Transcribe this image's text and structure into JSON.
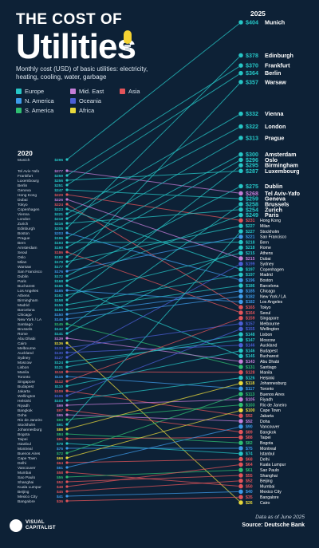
{
  "header": {
    "title_line1": "THE COST OF",
    "title_line2": "Utilities",
    "subtitle": "Monthly cost (USD) of basic utilities: electricity, heating, cooling, water, garbage"
  },
  "legend": [
    {
      "label": "Europe",
      "color": "#26c6c6"
    },
    {
      "label": "Mid. East",
      "color": "#c57ed9"
    },
    {
      "label": "Asia",
      "color": "#e3545a"
    },
    {
      "label": "N. America",
      "color": "#3d9be9"
    },
    {
      "label": "Oceania",
      "color": "#4b5fd6"
    },
    {
      "label": "S. America",
      "color": "#2fbf71"
    },
    {
      "label": "Africa",
      "color": "#e8d93c"
    }
  ],
  "columns": {
    "left": "2020",
    "right": "2025"
  },
  "footer": {
    "note": "Data as of June 2025",
    "source_label": "Source:",
    "source": "Deutsche Bank",
    "logo": "VISUAL CAPITALIST"
  },
  "chart_data": {
    "type": "slope",
    "title": "The Cost of Utilities",
    "unit": "USD per month",
    "x": [
      "2020",
      "2025"
    ],
    "series": [
      {
        "city": "Munich",
        "region": "Europe",
        "v2020": 296,
        "v2025": 404
      },
      {
        "city": "Tel Aviv-Yafo",
        "region": "Mid. East",
        "v2020": 277,
        "v2025": 268
      },
      {
        "city": "Frankfurt",
        "region": "Europe",
        "v2020": 259,
        "v2025": 370
      },
      {
        "city": "Luxembourg",
        "region": "Europe",
        "v2020": 256,
        "v2025": 287
      },
      {
        "city": "Berlin",
        "region": "Europe",
        "v2020": 251,
        "v2025": 364
      },
      {
        "city": "Geneva",
        "region": "Europe",
        "v2020": 247,
        "v2025": 259
      },
      {
        "city": "Hong Kong",
        "region": "Asia",
        "v2020": 229,
        "v2025": 231
      },
      {
        "city": "Tokyo",
        "region": "Asia",
        "v2020": 224,
        "v2025": 165
      },
      {
        "city": "Copenhagen",
        "region": "Europe",
        "v2020": 223,
        "v2025": 197
      },
      {
        "city": "Vienna",
        "region": "Europe",
        "v2020": 221,
        "v2025": 332
      },
      {
        "city": "London",
        "region": "Europe",
        "v2020": 218,
        "v2025": 322
      },
      {
        "city": "Zurich",
        "region": "Europe",
        "v2020": 216,
        "v2025": 254
      },
      {
        "city": "Edinburgh",
        "region": "Europe",
        "v2020": 205,
        "v2025": 378
      },
      {
        "city": "Boston",
        "region": "N. America",
        "v2020": 203,
        "v2025": 196
      },
      {
        "city": "Prague",
        "region": "Europe",
        "v2020": 196,
        "v2025": 313
      },
      {
        "city": "Bern",
        "region": "Europe",
        "v2020": 193,
        "v2025": 218
      },
      {
        "city": "Amsterdam",
        "region": "Europe",
        "v2020": 190,
        "v2025": 300
      },
      {
        "city": "Seoul",
        "region": "Asia",
        "v2020": 186,
        "v2025": 164
      },
      {
        "city": "Oslo",
        "region": "Europe",
        "v2020": 182,
        "v2025": 296
      },
      {
        "city": "Milan",
        "region": "Europe",
        "v2020": 179,
        "v2025": 227
      },
      {
        "city": "Warsaw",
        "region": "Europe",
        "v2020": 177,
        "v2025": 357
      },
      {
        "city": "San Francisco",
        "region": "N. America",
        "v2020": 176,
        "v2025": 221
      },
      {
        "city": "Dublin",
        "region": "Europe",
        "v2020": 172,
        "v2025": 275
      },
      {
        "city": "Paris",
        "region": "Europe",
        "v2020": 168,
        "v2025": 249
      },
      {
        "city": "Bucharest",
        "region": "Europe",
        "v2020": 166,
        "v2025": 145
      },
      {
        "city": "Athens",
        "region": "Europe",
        "v2020": 162,
        "v2025": 215
      },
      {
        "city": "Birmingham",
        "region": "Europe",
        "v2020": 158,
        "v2025": 295
      },
      {
        "city": "Madrid",
        "region": "Europe",
        "v2020": 156,
        "v2025": 197
      },
      {
        "city": "Barcelona",
        "region": "Europe",
        "v2020": 153,
        "v2025": 186
      },
      {
        "city": "Chicago",
        "region": "N. America",
        "v2020": 150,
        "v2025": 185
      },
      {
        "city": "New York / LA",
        "region": "N. America",
        "v2020": 148,
        "v2025": 182
      },
      {
        "city": "Santiago",
        "region": "S. America",
        "v2020": 145,
        "v2025": 131
      },
      {
        "city": "Brussels",
        "region": "Europe",
        "v2020": 142,
        "v2025": 258
      },
      {
        "city": "Abu Dhabi",
        "region": "Mid. East",
        "v2020": 139,
        "v2025": 143
      },
      {
        "city": "Cairo",
        "region": "Africa",
        "v2020": 136,
        "v2025": 26
      },
      {
        "city": "Melbourne",
        "region": "Oceania",
        "v2020": 133,
        "v2025": 157
      },
      {
        "city": "Auckland",
        "region": "Oceania",
        "v2020": 130,
        "v2025": 146
      },
      {
        "city": "Sydney",
        "region": "Oceania",
        "v2020": 127,
        "v2025": 199
      },
      {
        "city": "Moscow",
        "region": "Europe",
        "v2020": 124,
        "v2025": 147
      },
      {
        "city": "Lisbon",
        "region": "Europe",
        "v2020": 121,
        "v2025": 148
      },
      {
        "city": "Manila",
        "region": "Asia",
        "v2020": 118,
        "v2025": 128
      },
      {
        "city": "Toronto",
        "region": "N. America",
        "v2020": 115,
        "v2025": 117
      },
      {
        "city": "Singapore",
        "region": "Asia",
        "v2020": 112,
        "v2025": 159
      },
      {
        "city": "Jakarta",
        "region": "Asia",
        "v2020": 109,
        "v2025": 92
      },
      {
        "city": "Wellington",
        "region": "Oceania",
        "v2020": 106,
        "v2025": 155
      },
      {
        "city": "Helsinki",
        "region": "Europe",
        "v2020": 103,
        "v2025": 126
      },
      {
        "city": "Riyadh",
        "region": "Mid. East",
        "v2020": 99,
        "v2025": 105
      },
      {
        "city": "Bangkok",
        "region": "Asia",
        "v2020": 97,
        "v2025": 89
      },
      {
        "city": "Doha",
        "region": "Mid. East",
        "v2020": 95,
        "v2025": 92
      },
      {
        "city": "Rio de Janeiro",
        "region": "S. America",
        "v2020": 93,
        "v2025": 103
      },
      {
        "city": "Stockholm",
        "region": "Europe",
        "v2020": 91,
        "v2025": 227
      },
      {
        "city": "Johannesburg",
        "region": "Africa",
        "v2020": 88,
        "v2025": 118
      },
      {
        "city": "Bogota",
        "region": "S. America",
        "v2020": 84,
        "v2025": 82
      },
      {
        "city": "Taipei",
        "region": "Asia",
        "v2020": 81,
        "v2025": 88
      },
      {
        "city": "Istanbul",
        "region": "Europe",
        "v2020": 78,
        "v2025": 74
      },
      {
        "city": "Montreal",
        "region": "N. America",
        "v2020": 75,
        "v2025": 75
      },
      {
        "city": "Buenos Aires",
        "region": "S. America",
        "v2020": 72,
        "v2025": 113
      },
      {
        "city": "Cape Town",
        "region": "Africa",
        "v2020": 69,
        "v2025": 100
      },
      {
        "city": "Delhi",
        "region": "Asia",
        "v2020": 64,
        "v2025": 68
      },
      {
        "city": "Vancouver",
        "region": "N. America",
        "v2020": 61,
        "v2025": 90
      },
      {
        "city": "Mumbai",
        "region": "Asia",
        "v2020": 58,
        "v2025": 50
      },
      {
        "city": "Sao Paulo",
        "region": "S. America",
        "v2020": 55,
        "v2025": 61
      },
      {
        "city": "Shanghai",
        "region": "Asia",
        "v2020": 52,
        "v2025": 55
      },
      {
        "city": "Kuala Lumpur",
        "region": "Asia",
        "v2020": 48,
        "v2025": 64
      },
      {
        "city": "Beijing",
        "region": "Asia",
        "v2020": 45,
        "v2025": 52
      },
      {
        "city": "Mexico City",
        "region": "N. America",
        "v2020": 41,
        "v2025": 40
      },
      {
        "city": "Bangalore",
        "region": "Asia",
        "v2020": 36,
        "v2025": 35
      },
      {
        "city": "Dubai",
        "region": "Mid. East",
        "v2020": 226,
        "v2025": 215
      },
      {
        "city": "Los Angeles",
        "region": "N. America",
        "v2020": 165,
        "v2025": 182
      },
      {
        "city": "Budapest",
        "region": "Europe",
        "v2020": 110,
        "v2025": 146
      },
      {
        "city": "Rome",
        "region": "Europe",
        "v2020": 141,
        "v2025": 218
      }
    ]
  }
}
